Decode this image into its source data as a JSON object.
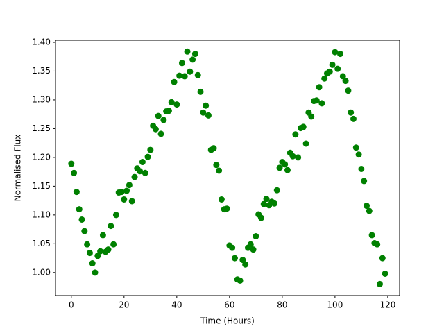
{
  "chart_data": {
    "type": "scatter",
    "xlabel": "Time (Hours)",
    "ylabel": "Normalised Flux",
    "color": "#008000",
    "xlim": [
      -6,
      124.5
    ],
    "ylim": [
      0.96,
      1.4036
    ],
    "xticks": [
      0,
      20,
      40,
      60,
      80,
      100,
      120
    ],
    "yticks": [
      {
        "value": 1.0,
        "label": "1.00"
      },
      1.05,
      {
        "value": 1.1,
        "label": "1.10"
      },
      1.15,
      {
        "value": 1.2,
        "label": "1.20"
      },
      1.25,
      {
        "value": 1.3,
        "label": "1.30"
      },
      1.35,
      {
        "value": 1.4,
        "label": "1.40"
      }
    ],
    "x": [
      0,
      1,
      2,
      3,
      4,
      5,
      6,
      7,
      8,
      9,
      10,
      11,
      12,
      13,
      14,
      15,
      16,
      17,
      18,
      19,
      20,
      21,
      22,
      23,
      24,
      25,
      26,
      27,
      28,
      29,
      30,
      31,
      32,
      33,
      34,
      35,
      36,
      37,
      38,
      39,
      40,
      41,
      42,
      43,
      44,
      45,
      46,
      47,
      48,
      49,
      50,
      51,
      52,
      53,
      54,
      55,
      56,
      57,
      58,
      59,
      60,
      61,
      62,
      63,
      64,
      65,
      66,
      67,
      68,
      69,
      70,
      71,
      72,
      73,
      74,
      75,
      76,
      77,
      78,
      79,
      80,
      81,
      82,
      83,
      84,
      85,
      86,
      87,
      88,
      89,
      90,
      91,
      92,
      93,
      94,
      95,
      96,
      97,
      98,
      99,
      100,
      101,
      102,
      103,
      104,
      105,
      106,
      107,
      108,
      109,
      110,
      111,
      112,
      113,
      114,
      115,
      116,
      117,
      118,
      119
    ],
    "values": [
      1.189,
      1.173,
      1.14,
      1.11,
      1.092,
      1.072,
      1.049,
      1.034,
      1.016,
      1.0,
      1.029,
      1.037,
      1.065,
      1.036,
      1.04,
      1.081,
      1.049,
      1.1,
      1.139,
      1.14,
      1.127,
      1.142,
      1.152,
      1.124,
      1.166,
      1.181,
      1.176,
      1.192,
      1.173,
      1.201,
      1.213,
      1.255,
      1.249,
      1.272,
      1.241,
      1.265,
      1.28,
      1.281,
      1.296,
      1.331,
      1.292,
      1.342,
      1.364,
      1.341,
      1.384,
      1.349,
      1.37,
      1.38,
      1.343,
      1.314,
      1.278,
      1.29,
      1.273,
      1.213,
      1.216,
      1.187,
      1.177,
      1.127,
      1.11,
      1.111,
      1.047,
      1.043,
      1.025,
      0.988,
      0.986,
      1.022,
      1.014,
      1.043,
      1.049,
      1.04,
      1.063,
      1.101,
      1.095,
      1.119,
      1.128,
      1.117,
      1.123,
      1.12,
      1.143,
      1.182,
      1.192,
      1.188,
      1.178,
      1.208,
      1.202,
      1.24,
      1.2,
      1.251,
      1.253,
      1.224,
      1.278,
      1.271,
      1.298,
      1.299,
      1.322,
      1.294,
      1.337,
      1.346,
      1.349,
      1.361,
      1.383,
      1.354,
      1.38,
      1.341,
      1.333,
      1.316,
      1.278,
      1.267,
      1.217,
      1.205,
      1.18,
      1.159,
      1.116,
      1.107,
      1.065,
      1.051,
      1.049,
      0.98,
      1.025,
      0.998
    ]
  }
}
